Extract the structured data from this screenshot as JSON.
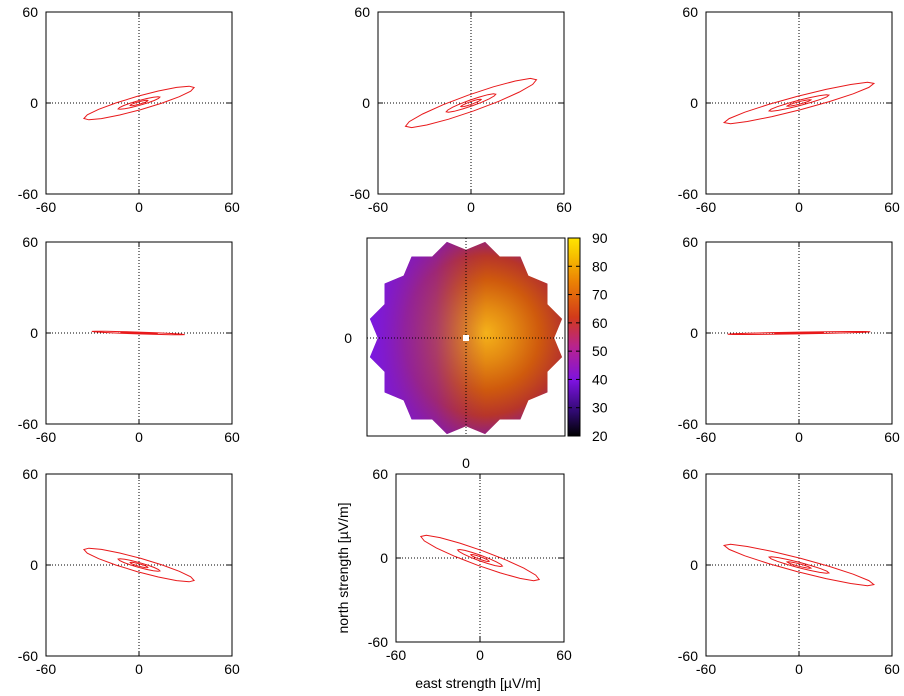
{
  "chart_data": {
    "type": "figure-grid",
    "small_panels": [
      {
        "id": "top-left",
        "xticks": [
          "-60",
          "0",
          "60"
        ],
        "yticks": [
          "60",
          "0",
          "-60"
        ],
        "xlim": [
          -60,
          60
        ],
        "ylim": [
          -60,
          60
        ],
        "ellipses": [
          {
            "a": 37,
            "b": 4.5,
            "angle_deg": 16,
            "cx": 0,
            "cy": 0
          },
          {
            "a": 14,
            "b": 1.6,
            "angle_deg": 16,
            "cx": 0,
            "cy": 0
          },
          {
            "a": 6,
            "b": 0.8,
            "angle_deg": 16,
            "cx": 0,
            "cy": 0
          }
        ]
      },
      {
        "id": "top-center",
        "xticks": [
          "-60",
          "0",
          "60"
        ],
        "yticks": [
          "60",
          "0",
          "-60"
        ],
        "xlim": [
          -60,
          60
        ],
        "ylim": [
          -60,
          60
        ],
        "ellipses": [
          {
            "a": 45,
            "b": 5.5,
            "angle_deg": 20,
            "cx": 0,
            "cy": 0
          },
          {
            "a": 17,
            "b": 2,
            "angle_deg": 20,
            "cx": 0,
            "cy": 0
          },
          {
            "a": 7,
            "b": 0.9,
            "angle_deg": 20,
            "cx": 0,
            "cy": 0
          }
        ]
      },
      {
        "id": "top-right",
        "xticks": [
          "-60",
          "0",
          "60"
        ],
        "yticks": [
          "60",
          "0",
          "-60"
        ],
        "xlim": [
          -60,
          60
        ],
        "ylim": [
          -60,
          60
        ],
        "ellipses": [
          {
            "a": 50,
            "b": 4.5,
            "angle_deg": 15,
            "cx": 0,
            "cy": 0
          },
          {
            "a": 20,
            "b": 1.8,
            "angle_deg": 15,
            "cx": 0,
            "cy": 0
          },
          {
            "a": 8,
            "b": 0.8,
            "angle_deg": 15,
            "cx": 0,
            "cy": 0
          }
        ]
      },
      {
        "id": "middle-left",
        "xticks": [
          "-60",
          "0",
          "60"
        ],
        "yticks": [
          "60",
          "0",
          "-60"
        ],
        "xlim": [
          -60,
          60
        ],
        "ylim": [
          -60,
          60
        ],
        "ellipses": [
          {
            "a": 30,
            "b": 0.6,
            "angle_deg": -2,
            "cx": -0.5,
            "cy": 0
          },
          {
            "a": 12,
            "b": 0.3,
            "angle_deg": -2,
            "cx": 0,
            "cy": 0
          }
        ]
      },
      {
        "id": "middle-right",
        "xticks": [
          "-60",
          "0",
          "60"
        ],
        "yticks": [
          "60",
          "0",
          "-60"
        ],
        "xlim": [
          -60,
          60
        ],
        "ylim": [
          -60,
          60
        ],
        "ellipses": [
          {
            "a": 46,
            "b": 0.6,
            "angle_deg": 1,
            "cx": 0,
            "cy": 0
          },
          {
            "a": 16,
            "b": 0.3,
            "angle_deg": 1,
            "cx": 0,
            "cy": 0
          }
        ]
      },
      {
        "id": "bottom-left",
        "xticks": [
          "-60",
          "0",
          "60"
        ],
        "yticks": [
          "60",
          "0",
          "-60"
        ],
        "xlim": [
          -60,
          60
        ],
        "ylim": [
          -60,
          60
        ],
        "ellipses": [
          {
            "a": 37,
            "b": 4.5,
            "angle_deg": -16,
            "cx": 0,
            "cy": 0
          },
          {
            "a": 14,
            "b": 1.6,
            "angle_deg": -16,
            "cx": 0,
            "cy": 0
          },
          {
            "a": 6,
            "b": 0.8,
            "angle_deg": -16,
            "cx": 0,
            "cy": 0
          }
        ]
      },
      {
        "id": "bottom-center",
        "xticks": [
          "-60",
          "0",
          "60"
        ],
        "yticks": [
          "60",
          "0",
          "-60"
        ],
        "xlim": [
          -60,
          60
        ],
        "ylim": [
          -60,
          60
        ],
        "xlabel": "east strength [µV/m]",
        "ylabel": "north strength [µV/m]",
        "ellipses": [
          {
            "a": 45,
            "b": 5.5,
            "angle_deg": -20,
            "cx": 0,
            "cy": 0
          },
          {
            "a": 17,
            "b": 2,
            "angle_deg": -20,
            "cx": 0,
            "cy": 0
          },
          {
            "a": 7,
            "b": 0.9,
            "angle_deg": -20,
            "cx": 0,
            "cy": 0
          }
        ]
      },
      {
        "id": "bottom-right",
        "xticks": [
          "-60",
          "0",
          "60"
        ],
        "yticks": [
          "60",
          "0",
          "-60"
        ],
        "xlim": [
          -60,
          60
        ],
        "ylim": [
          -60,
          60
        ],
        "ellipses": [
          {
            "a": 50,
            "b": 4.5,
            "angle_deg": -15,
            "cx": 0,
            "cy": 0
          },
          {
            "a": 20,
            "b": 1.8,
            "angle_deg": -15,
            "cx": 0,
            "cy": 0
          },
          {
            "a": 8,
            "b": 0.8,
            "angle_deg": -15,
            "cx": 0,
            "cy": 0
          }
        ]
      }
    ],
    "center_map": {
      "type": "heatmap",
      "xtick": "0",
      "ytick": "0",
      "colorbar_ticks": [
        "90",
        "80",
        "70",
        "60",
        "50",
        "40",
        "30",
        "20"
      ],
      "colorbar_range": [
        20,
        90
      ],
      "peak_value": 88,
      "west_value": 32,
      "marker": "white-square-center"
    },
    "ellipse_color": "#e8191b",
    "axis_color": "#000000",
    "zero_line_style": "dotted"
  }
}
